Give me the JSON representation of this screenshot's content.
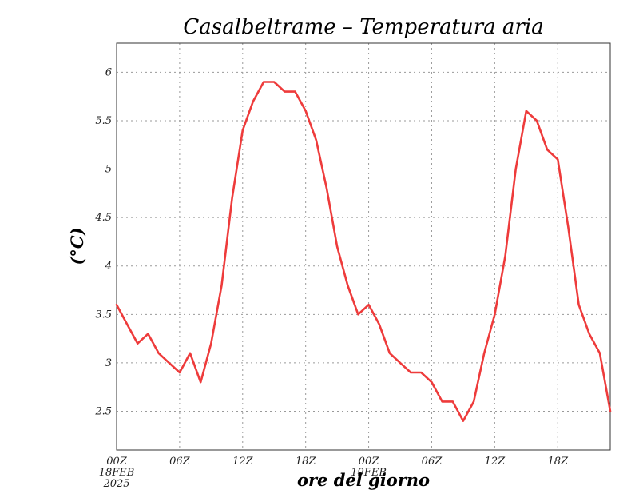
{
  "chart_data": {
    "type": "line",
    "title": "Casalbeltrame – Temperatura aria",
    "xlabel": "ore del giorno",
    "ylabel": "(°C)",
    "ylim": [
      2.1,
      6.3
    ],
    "xlim": [
      0,
      47
    ],
    "grid": true,
    "y_ticks": [
      "2.5",
      "3",
      "3.5",
      "4",
      "4.5",
      "5",
      "5.5",
      "6"
    ],
    "y_tick_values": [
      2.5,
      3,
      3.5,
      4,
      4.5,
      5,
      5.5,
      6
    ],
    "x_ticks": [
      {
        "hour": 0,
        "label": "00Z",
        "sub": [
          "18FEB",
          "2025"
        ]
      },
      {
        "hour": 6,
        "label": "06Z",
        "sub": []
      },
      {
        "hour": 12,
        "label": "12Z",
        "sub": []
      },
      {
        "hour": 18,
        "label": "18Z",
        "sub": []
      },
      {
        "hour": 24,
        "label": "00Z",
        "sub": [
          "19FEB"
        ]
      },
      {
        "hour": 30,
        "label": "06Z",
        "sub": []
      },
      {
        "hour": 36,
        "label": "12Z",
        "sub": []
      },
      {
        "hour": 42,
        "label": "18Z",
        "sub": []
      }
    ],
    "series": [
      {
        "color": "#ee3b3b",
        "x": [
          0,
          1,
          2,
          3,
          4,
          5,
          6,
          7,
          8,
          9,
          10,
          11,
          12,
          13,
          14,
          15,
          16,
          17,
          18,
          19,
          20,
          21,
          22,
          23,
          24,
          25,
          26,
          27,
          28,
          29,
          30,
          31,
          32,
          33,
          34,
          35,
          36,
          37,
          38,
          39,
          40,
          41,
          42,
          43,
          44,
          45,
          46,
          47
        ],
        "values": [
          3.6,
          3.4,
          3.2,
          3.3,
          3.1,
          3.0,
          2.9,
          3.1,
          2.8,
          3.2,
          3.8,
          4.7,
          5.4,
          5.7,
          5.9,
          5.9,
          5.8,
          5.8,
          5.6,
          5.3,
          4.8,
          4.2,
          3.8,
          3.5,
          3.6,
          3.4,
          3.1,
          3.0,
          2.9,
          2.9,
          2.8,
          2.6,
          2.6,
          2.4,
          2.6,
          3.1,
          3.5,
          4.1,
          5.0,
          5.6,
          5.5,
          5.2,
          5.1,
          4.4,
          3.6,
          3.3,
          3.1,
          2.5
        ]
      }
    ]
  }
}
